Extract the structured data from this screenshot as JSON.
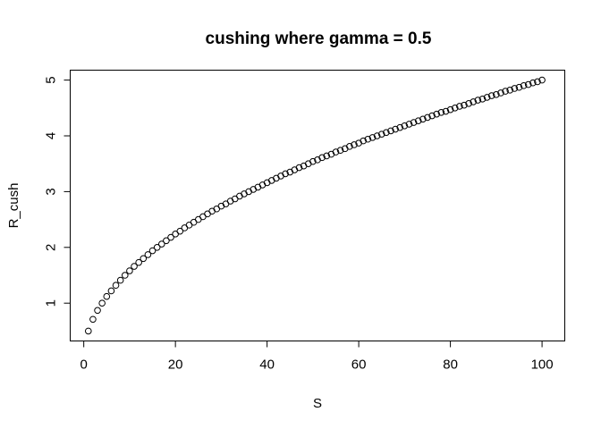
{
  "chart_data": {
    "type": "scatter",
    "title": "cushing where gamma = 0.5",
    "xlabel": "S",
    "ylabel": "R_cush",
    "xlim": [
      -2.96,
      104.96
    ],
    "ylim": [
      0.322,
      5.178
    ],
    "xticks": [
      0,
      20,
      40,
      60,
      80,
      100
    ],
    "yticks": [
      1,
      2,
      3,
      4,
      5
    ],
    "xtick_labels": [
      "0",
      "20",
      "40",
      "60",
      "80",
      "100"
    ],
    "ytick_labels": [
      "1",
      "2",
      "3",
      "4",
      "5"
    ],
    "x_start": 1,
    "x_end": 100,
    "y_values": [
      0.5,
      0.71,
      0.87,
      1.0,
      1.12,
      1.22,
      1.32,
      1.41,
      1.5,
      1.58,
      1.66,
      1.73,
      1.8,
      1.87,
      1.94,
      2.0,
      2.06,
      2.12,
      2.18,
      2.24,
      2.29,
      2.35,
      2.4,
      2.45,
      2.5,
      2.55,
      2.6,
      2.65,
      2.69,
      2.74,
      2.78,
      2.83,
      2.87,
      2.92,
      2.96,
      3.0,
      3.04,
      3.08,
      3.12,
      3.16,
      3.2,
      3.24,
      3.28,
      3.32,
      3.35,
      3.39,
      3.43,
      3.46,
      3.5,
      3.54,
      3.57,
      3.61,
      3.64,
      3.67,
      3.71,
      3.74,
      3.77,
      3.81,
      3.84,
      3.87,
      3.91,
      3.94,
      3.97,
      4.0,
      4.03,
      4.06,
      4.09,
      4.12,
      4.15,
      4.18,
      4.21,
      4.24,
      4.27,
      4.3,
      4.33,
      4.36,
      4.39,
      4.42,
      4.44,
      4.47,
      4.5,
      4.53,
      4.55,
      4.58,
      4.61,
      4.64,
      4.66,
      4.69,
      4.72,
      4.74,
      4.77,
      4.8,
      4.82,
      4.85,
      4.87,
      4.9,
      4.92,
      4.95,
      4.97,
      5.0
    ],
    "marker": "open-circle",
    "grid": false,
    "legend": "none"
  }
}
